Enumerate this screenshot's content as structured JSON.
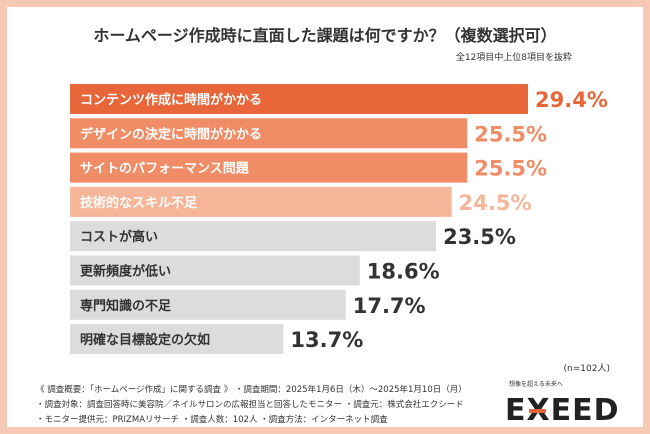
{
  "title": "ホームページ作成時に直面した課題は何ですか？（複数選択可）",
  "subtitle": "全12項目中上位8項目を抜粋",
  "n_label": "(n=102人)",
  "footer": {
    "line1": "《 調査概要：「ホームページ作成」に関する調査 》 ・調査期間：2025年1月6日（木）〜2025年1月10日（月）",
    "line2": "・調査対象：調査回答時に美容院／ネイルサロンの広報担当と回答したモニター ・調査元：株式会社エクシード",
    "line3": "・モニター提供元：PRIZMAリサーチ ・調査人数：102人 ・調査方法：インターネット調査"
  },
  "logo": {
    "tagline": "想像を超える未来へ",
    "text": "EXEED"
  },
  "chart_data": {
    "type": "bar",
    "orientation": "horizontal",
    "unit": "%",
    "categories": [
      "コンテンツ作成に時間がかかる",
      "デザインの決定に時間がかかる",
      "サイトのパフォーマンス問題",
      "技術的なスキル不足",
      "コストが高い",
      "更新頻度が低い",
      "専門知識の不足",
      "明確な目標設定の欠如"
    ],
    "values": [
      29.4,
      25.5,
      25.5,
      24.5,
      23.5,
      18.6,
      17.7,
      13.7
    ],
    "value_labels": [
      "29.4%",
      "25.5%",
      "25.5%",
      "24.5%",
      "23.5%",
      "18.6%",
      "17.7%",
      "13.7%"
    ],
    "bar_colors": [
      "#e8663a",
      "#f08d66",
      "#f08d66",
      "#f7b59a",
      "#dcdcdc",
      "#dcdcdc",
      "#dcdcdc",
      "#dcdcdc"
    ],
    "value_colors": [
      "#e8663a",
      "#f08d66",
      "#f08d66",
      "#f7b59a",
      "#333333",
      "#333333",
      "#333333",
      "#333333"
    ],
    "label_colors": [
      "light",
      "light",
      "light",
      "light",
      "dark",
      "dark",
      "dark",
      "dark"
    ],
    "xlim": [
      0,
      30
    ]
  }
}
